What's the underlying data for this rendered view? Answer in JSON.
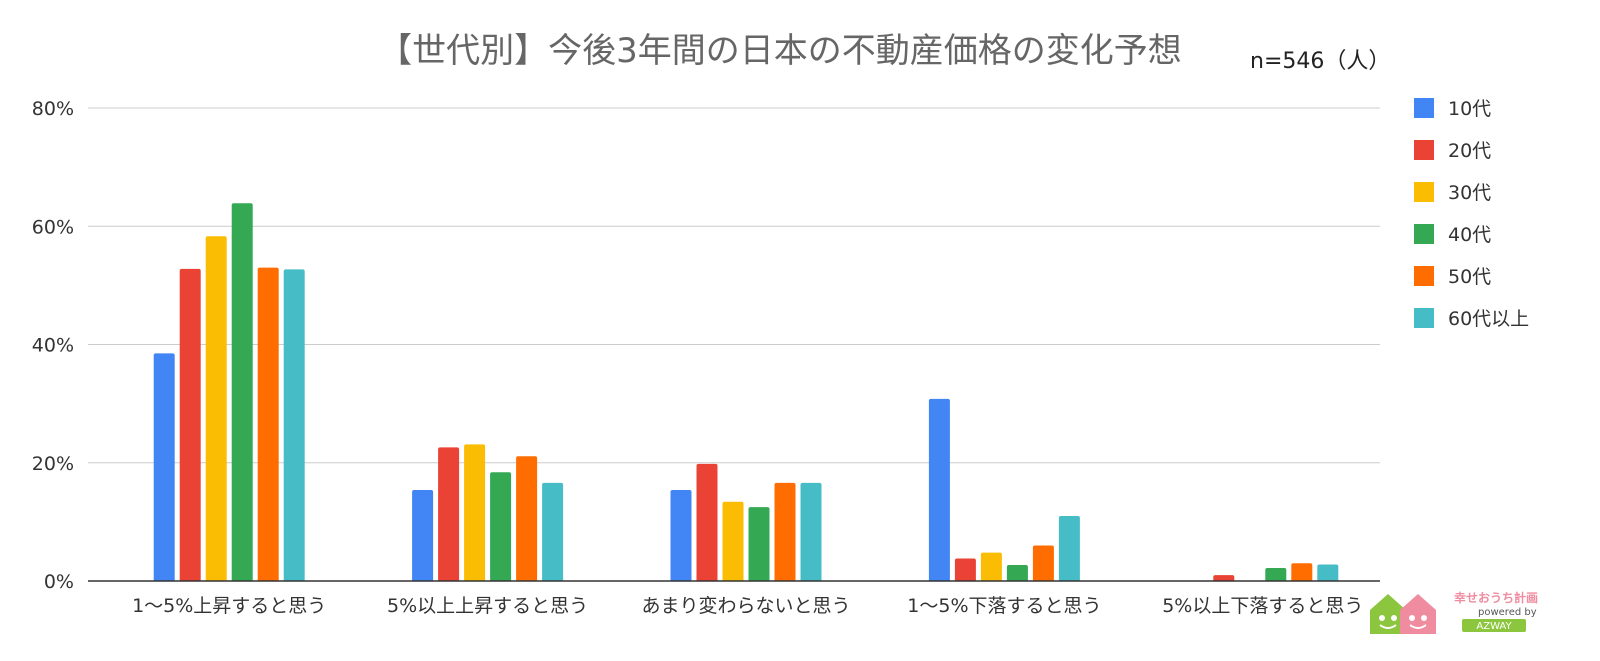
{
  "chart_data": {
    "type": "bar",
    "title": "【世代別】今後3年間の日本の不動産価格の変化予想",
    "note": "n=546（人）",
    "categories": [
      "1～5%上昇すると思う",
      "5%以上上昇すると思う",
      "あまり変わらないと思う",
      "1～5%下落すると思う",
      "5%以上下落すると思う"
    ],
    "series": [
      {
        "name": "10代",
        "color": "#4285f4",
        "values": [
          38.5,
          15.4,
          15.4,
          30.8,
          0
        ]
      },
      {
        "name": "20代",
        "color": "#ea4335",
        "values": [
          52.8,
          22.6,
          19.8,
          3.8,
          1.0
        ]
      },
      {
        "name": "30代",
        "color": "#fbbc04",
        "values": [
          58.3,
          23.1,
          13.4,
          4.8,
          0
        ]
      },
      {
        "name": "40代",
        "color": "#34a853",
        "values": [
          63.9,
          18.4,
          12.5,
          2.7,
          2.2
        ]
      },
      {
        "name": "50代",
        "color": "#ff6d01",
        "values": [
          53.0,
          21.1,
          16.6,
          6.0,
          3.0
        ]
      },
      {
        "name": "60代以上",
        "color": "#46bdc6",
        "values": [
          52.7,
          16.6,
          16.6,
          11.0,
          2.8
        ]
      }
    ],
    "yticks": [
      "0%",
      "20%",
      "40%",
      "60%",
      "80%"
    ],
    "ylim": [
      0,
      80
    ],
    "grid": true,
    "legend": "right"
  },
  "logo": {
    "name": "幸せおうち計画",
    "powered": "powered by",
    "brand": "AZWAY",
    "colors": {
      "green": "#8cc63f",
      "pink": "#f08ca0",
      "badge": "#8cc63f"
    }
  }
}
